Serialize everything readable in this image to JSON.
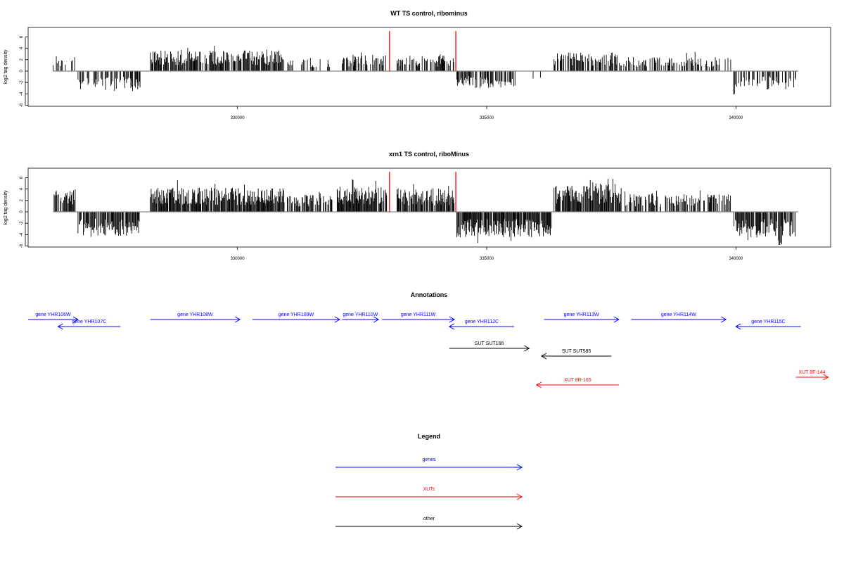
{
  "chart_data": [
    {
      "type": "bar",
      "title": "WT TS control, ribominus",
      "xlabel": "",
      "ylabel": "log2 tag density",
      "xlim": [
        325800,
        341900
      ],
      "ylim": [
        -6,
        7
      ],
      "x_ticks": [
        "330000",
        "335000",
        "340000"
      ],
      "x_tick_values": [
        330000,
        335000,
        340000
      ],
      "y_ticks": [
        "-6",
        "-4",
        "-2",
        "0",
        "2",
        "4",
        "6"
      ],
      "y_tick_values": [
        -6,
        -4,
        -2,
        0,
        2,
        4,
        6
      ],
      "baseline_range": [
        326300,
        341250
      ],
      "markers": {
        "color": "#ff0000",
        "positions": [
          333050,
          334380
        ],
        "height": 7
      },
      "segments": [
        {
          "start": 326300,
          "end": 326750,
          "sign": 1,
          "amp": 2.2,
          "density": 0.25
        },
        {
          "start": 326800,
          "end": 328050,
          "sign": -1,
          "amp": 2.8,
          "density": 0.55
        },
        {
          "start": 328250,
          "end": 330950,
          "sign": 1,
          "amp": 2.9,
          "density": 0.8
        },
        {
          "start": 331000,
          "end": 331900,
          "sign": 1,
          "amp": 1.7,
          "density": 0.35
        },
        {
          "start": 332100,
          "end": 333000,
          "sign": 1,
          "amp": 2.2,
          "density": 0.6
        },
        {
          "start": 333200,
          "end": 334350,
          "sign": 1,
          "amp": 2.2,
          "density": 0.55
        },
        {
          "start": 334400,
          "end": 335600,
          "sign": -1,
          "amp": 2.4,
          "density": 0.6
        },
        {
          "start": 335900,
          "end": 336200,
          "sign": -1,
          "amp": 1.3,
          "density": 0.2
        },
        {
          "start": 336350,
          "end": 337700,
          "sign": 1,
          "amp": 2.6,
          "density": 0.75
        },
        {
          "start": 337750,
          "end": 339900,
          "sign": 1,
          "amp": 2.0,
          "density": 0.5
        },
        {
          "start": 339950,
          "end": 341200,
          "sign": -1,
          "amp": 2.6,
          "density": 0.45
        }
      ]
    },
    {
      "type": "bar",
      "title": "xrn1 TS control, riboMinus",
      "xlabel": "",
      "ylabel": "log2 tag density",
      "xlim": [
        325800,
        341900
      ],
      "ylim": [
        -6,
        7
      ],
      "x_ticks": [
        "330000",
        "335000",
        "340000"
      ],
      "x_tick_values": [
        330000,
        335000,
        340000
      ],
      "y_ticks": [
        "-6",
        "-4",
        "-2",
        "0",
        "2",
        "4",
        "6"
      ],
      "y_tick_values": [
        -6,
        -4,
        -2,
        0,
        2,
        4,
        6
      ],
      "baseline_range": [
        326300,
        341250
      ],
      "markers": {
        "color": "#ff0000",
        "positions": [
          333050,
          334380
        ],
        "height": 7
      },
      "segments": [
        {
          "start": 326300,
          "end": 326750,
          "sign": 1,
          "amp": 3.2,
          "density": 0.7
        },
        {
          "start": 326800,
          "end": 328050,
          "sign": -1,
          "amp": 3.4,
          "density": 0.85
        },
        {
          "start": 328250,
          "end": 330950,
          "sign": 1,
          "amp": 3.4,
          "density": 0.95
        },
        {
          "start": 331000,
          "end": 331900,
          "sign": 1,
          "amp": 2.6,
          "density": 0.7
        },
        {
          "start": 332000,
          "end": 333000,
          "sign": 1,
          "amp": 3.6,
          "density": 0.95
        },
        {
          "start": 333200,
          "end": 334350,
          "sign": 1,
          "amp": 3.2,
          "density": 0.9
        },
        {
          "start": 334400,
          "end": 336300,
          "sign": -1,
          "amp": 3.6,
          "density": 0.95
        },
        {
          "start": 336350,
          "end": 337700,
          "sign": 1,
          "amp": 4.0,
          "density": 0.95
        },
        {
          "start": 337750,
          "end": 339900,
          "sign": 1,
          "amp": 2.5,
          "density": 0.65
        },
        {
          "start": 339950,
          "end": 341200,
          "sign": -1,
          "amp": 3.6,
          "density": 0.8
        }
      ]
    }
  ],
  "annotations": {
    "title": "Annotations",
    "xlim": [
      325800,
      341900
    ],
    "features": [
      {
        "label": "gene YHR106W",
        "start": 325800,
        "end": 326800,
        "strand": "+",
        "track": 0,
        "color": "#0000ff"
      },
      {
        "label": "gene YHR107C",
        "start": 326400,
        "end": 327650,
        "strand": "-",
        "track": 1,
        "color": "#0000ff"
      },
      {
        "label": "gene YHR108W",
        "start": 328250,
        "end": 330050,
        "strand": "+",
        "track": 0,
        "color": "#0000ff"
      },
      {
        "label": "gene YHR109W",
        "start": 330300,
        "end": 332050,
        "strand": "+",
        "track": 0,
        "color": "#0000ff"
      },
      {
        "label": "gene YHR110W",
        "start": 332100,
        "end": 332830,
        "strand": "+",
        "track": 0,
        "color": "#0000ff"
      },
      {
        "label": "gene YHR111W",
        "start": 332900,
        "end": 334350,
        "strand": "+",
        "track": 0,
        "color": "#0000ff"
      },
      {
        "label": "gene YHR112C",
        "start": 334250,
        "end": 335550,
        "strand": "-",
        "track": 1,
        "color": "#0000ff"
      },
      {
        "label": "SUT SUT166",
        "start": 334250,
        "end": 335850,
        "strand": "+",
        "track": 2,
        "color": "#000000"
      },
      {
        "label": "gene YHR113W",
        "start": 336150,
        "end": 337650,
        "strand": "+",
        "track": 0,
        "color": "#0000ff"
      },
      {
        "label": "SUT SUT585",
        "start": 336100,
        "end": 337500,
        "strand": "-",
        "track": 3,
        "color": "#000000"
      },
      {
        "label": "XUT 8R-165",
        "start": 336000,
        "end": 337650,
        "strand": "-",
        "track": 4,
        "color": "#ff0000"
      },
      {
        "label": "gene YHR114W",
        "start": 337900,
        "end": 339800,
        "strand": "+",
        "track": 0,
        "color": "#0000ff"
      },
      {
        "label": "gene YHR115C",
        "start": 340000,
        "end": 341300,
        "strand": "-",
        "track": 1,
        "color": "#0000ff"
      },
      {
        "label": "XUT 8F-144",
        "start": 341200,
        "end": 341850,
        "strand": "+",
        "track": 5,
        "color": "#ff0000"
      }
    ]
  },
  "legend": {
    "title": "Legend",
    "items": [
      {
        "label": "genes",
        "color": "#0000ff"
      },
      {
        "label": "XUTs",
        "color": "#ff0000"
      },
      {
        "label": "other",
        "color": "#000000"
      }
    ]
  }
}
